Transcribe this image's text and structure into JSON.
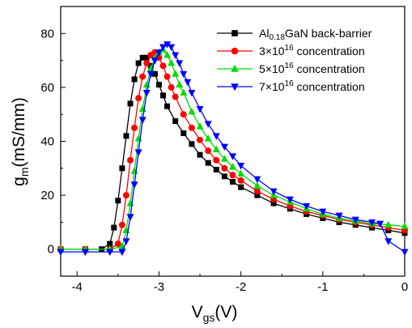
{
  "chart_data": {
    "type": "scatter",
    "title": "",
    "xlabel": {
      "main": "V",
      "sub": "gs",
      "tail": "(V)"
    },
    "ylabel": {
      "main": "g",
      "sub": "m",
      "tail": "(mS/mm)"
    },
    "xlim": [
      -4.2,
      0
    ],
    "ylim": [
      -10,
      90
    ],
    "xticks": [
      -4,
      -3,
      -2,
      -1,
      0
    ],
    "xtick_labels": [
      "-4",
      "-3",
      "-2",
      "-1",
      "0"
    ],
    "yticks": [
      0,
      20,
      40,
      60,
      80
    ],
    "ytick_labels": [
      "0",
      "20",
      "40",
      "60",
      "80"
    ],
    "grid": false,
    "legend_position": "top-right",
    "series": [
      {
        "name": "Al0.18GaN back-barrier",
        "legend": {
          "pre": "Al",
          "sub": "0.18",
          "post": "GaN back-barrier"
        },
        "marker": "square",
        "color": "#000000",
        "x": [
          -4.2,
          -3.9,
          -3.7,
          -3.6,
          -3.55,
          -3.5,
          -3.45,
          -3.4,
          -3.35,
          -3.3,
          -3.25,
          -3.2,
          -3.15,
          -3.1,
          -3.05,
          -3.0,
          -2.95,
          -2.9,
          -2.8,
          -2.7,
          -2.6,
          -2.5,
          -2.4,
          -2.3,
          -2.2,
          -2.1,
          -2.0,
          -1.8,
          -1.6,
          -1.4,
          -1.2,
          -1.0,
          -0.8,
          -0.6,
          -0.4,
          -0.2,
          0.0
        ],
        "y": [
          0,
          0,
          0,
          2,
          8,
          18,
          30,
          42,
          54,
          63,
          69,
          71,
          71,
          68,
          65,
          61,
          57,
          53,
          47.5,
          43,
          39,
          35,
          32,
          29.5,
          27,
          25,
          23,
          20,
          17,
          15,
          13,
          11.5,
          10,
          9,
          8,
          7,
          6
        ]
      },
      {
        "name": "3×10^16 concentration",
        "legend": {
          "pre": "3×10",
          "sup": "16",
          "post": " concentration"
        },
        "marker": "circle",
        "color": "#ff0000",
        "x": [
          -4.2,
          -3.9,
          -3.6,
          -3.5,
          -3.45,
          -3.4,
          -3.35,
          -3.3,
          -3.25,
          -3.2,
          -3.15,
          -3.1,
          -3.05,
          -3.0,
          -2.95,
          -2.9,
          -2.85,
          -2.8,
          -2.7,
          -2.6,
          -2.5,
          -2.4,
          -2.3,
          -2.2,
          -2.1,
          -2.0,
          -1.8,
          -1.6,
          -1.4,
          -1.2,
          -1.0,
          -0.8,
          -0.6,
          -0.4,
          -0.2,
          0.0
        ],
        "y": [
          0,
          0,
          0,
          2,
          9,
          20,
          33,
          45,
          56,
          64,
          69,
          72,
          73,
          71,
          68,
          64,
          60,
          56.5,
          50,
          45,
          40.5,
          36.5,
          33,
          30,
          27.5,
          25.5,
          21.5,
          18.5,
          16,
          14,
          12.5,
          11,
          10,
          9,
          8,
          7
        ]
      },
      {
        "name": "5×10^16 concentration",
        "legend": {
          "pre": "5×10",
          "sup": "16",
          "post": " concentration"
        },
        "marker": "triangle-up",
        "color": "#00dd00",
        "x": [
          -4.2,
          -3.9,
          -3.6,
          -3.45,
          -3.4,
          -3.35,
          -3.3,
          -3.25,
          -3.2,
          -3.15,
          -3.1,
          -3.05,
          -3.0,
          -2.95,
          -2.9,
          -2.85,
          -2.8,
          -2.75,
          -2.7,
          -2.6,
          -2.5,
          -2.4,
          -2.3,
          -2.2,
          -2.1,
          -2.0,
          -1.8,
          -1.6,
          -1.4,
          -1.2,
          -1.0,
          -0.8,
          -0.6,
          -0.4,
          -0.2,
          0.0
        ],
        "y": [
          0,
          0,
          0,
          1,
          7,
          17,
          29,
          41,
          52,
          61,
          67,
          71,
          73,
          74,
          72,
          69,
          65,
          61,
          58,
          51,
          45.5,
          41,
          37,
          33.5,
          30.5,
          28,
          23.5,
          20,
          17.5,
          15,
          13,
          11.5,
          10.5,
          9.5,
          9,
          8.5
        ]
      },
      {
        "name": "7×10^16 concentration",
        "legend": {
          "pre": "7×10",
          "sup": "16",
          "post": " concentration"
        },
        "marker": "triangle-down",
        "color": "#0000ff",
        "x": [
          -4.2,
          -3.9,
          -3.6,
          -3.45,
          -3.4,
          -3.35,
          -3.3,
          -3.25,
          -3.2,
          -3.15,
          -3.1,
          -3.05,
          -3.0,
          -2.95,
          -2.9,
          -2.85,
          -2.8,
          -2.75,
          -2.7,
          -2.65,
          -2.6,
          -2.5,
          -2.4,
          -2.3,
          -2.2,
          -2.1,
          -2.0,
          -1.8,
          -1.6,
          -1.4,
          -1.2,
          -1.0,
          -0.8,
          -0.6,
          -0.4,
          -0.3,
          -0.2,
          0.0
        ],
        "y": [
          -1,
          -1,
          -1,
          -1,
          3,
          12,
          24,
          36,
          48,
          58,
          65,
          70,
          73,
          75,
          76,
          75,
          72,
          69,
          65,
          62,
          58,
          52,
          46.5,
          42,
          38,
          34.5,
          31,
          26,
          21.5,
          18.5,
          16,
          14,
          12.5,
          11,
          10,
          9.5,
          3,
          -1
        ]
      }
    ]
  }
}
